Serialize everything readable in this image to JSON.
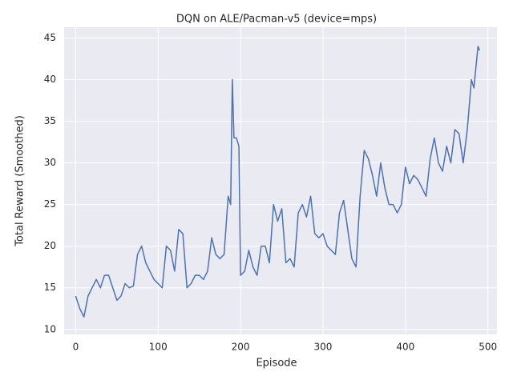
{
  "chart_data": {
    "type": "line",
    "title": "DQN on ALE/Pacman-v5 (device=mps)",
    "x_label": "Episode",
    "y_label": "Total Reward (Smoothed)",
    "x": [
      0,
      5,
      10,
      15,
      20,
      25,
      30,
      35,
      40,
      45,
      50,
      55,
      60,
      65,
      70,
      75,
      80,
      85,
      90,
      95,
      100,
      105,
      110,
      115,
      120,
      125,
      130,
      135,
      140,
      145,
      150,
      155,
      160,
      165,
      170,
      175,
      180,
      185,
      188,
      190,
      192,
      195,
      198,
      200,
      205,
      210,
      215,
      220,
      225,
      230,
      235,
      240,
      245,
      250,
      255,
      260,
      265,
      270,
      275,
      280,
      285,
      290,
      295,
      300,
      305,
      310,
      315,
      320,
      325,
      330,
      335,
      340,
      345,
      350,
      355,
      360,
      365,
      370,
      375,
      380,
      385,
      390,
      395,
      400,
      405,
      410,
      415,
      420,
      425,
      430,
      435,
      440,
      445,
      450,
      455,
      460,
      465,
      470,
      475,
      480,
      483,
      486,
      488,
      490
    ],
    "series": [
      {
        "name": "reward",
        "color": "#4c72b0",
        "values": [
          14,
          12.5,
          11.5,
          14,
          15,
          16,
          15,
          16.5,
          16.5,
          15,
          13.5,
          14,
          15.5,
          15,
          15.2,
          19,
          20,
          18,
          17,
          16,
          15.5,
          15,
          20,
          19.5,
          17,
          22,
          21.5,
          15,
          15.5,
          16.5,
          16.5,
          16,
          17,
          21,
          19,
          18.5,
          19,
          26,
          25,
          40,
          33,
          33,
          32,
          16.5,
          17,
          19.5,
          17.5,
          16.5,
          20,
          20,
          18,
          25,
          23,
          24.5,
          18,
          18.5,
          17.5,
          24,
          25,
          23.5,
          26,
          21.5,
          21,
          21.5,
          20,
          19.5,
          19,
          24,
          25.5,
          22,
          18.5,
          17.5,
          26,
          31.5,
          30.5,
          28.5,
          26,
          30,
          27,
          25,
          25,
          24,
          25,
          29.5,
          27.5,
          28.5,
          28,
          27,
          26,
          30.5,
          33,
          30,
          29,
          32,
          30,
          34,
          33.5,
          30,
          34,
          40,
          39,
          42,
          44,
          43.5
        ]
      }
    ],
    "xlim": [
      -14,
      511
    ],
    "ylim": [
      9.4,
      46.3
    ],
    "xticks": [
      0,
      100,
      200,
      300,
      400,
      500
    ],
    "yticks": [
      10,
      15,
      20,
      25,
      30,
      35,
      40,
      45
    ],
    "grid": true,
    "background": "#eaeaf2"
  }
}
